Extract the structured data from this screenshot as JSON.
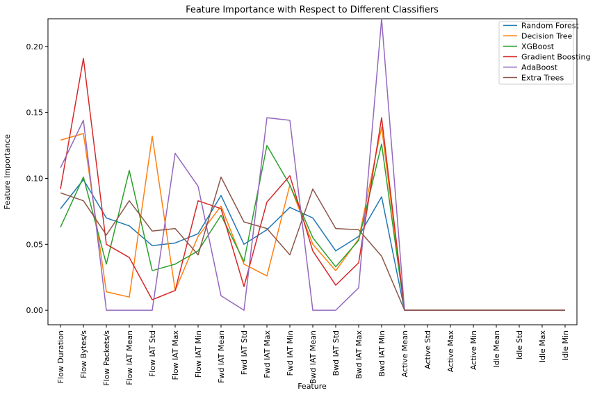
{
  "chart_data": {
    "type": "line",
    "title": "Feature Importance with Respect to Different Classifiers",
    "xlabel": "Feature",
    "ylabel": "Feature Importance",
    "ylim": [
      -0.011,
      0.221
    ],
    "yticks": [
      "0.00",
      "0.05",
      "0.10",
      "0.15",
      "0.20"
    ],
    "ytick_values": [
      0.0,
      0.05,
      0.1,
      0.15,
      0.2
    ],
    "grid": false,
    "legend_position": "top-right",
    "categories": [
      "Flow Duration",
      "Flow Bytes/s",
      "Flow Packets/s",
      "Flow IAT Mean",
      "Flow IAT Std",
      "Flow IAT Max",
      "Flow IAT Min",
      "Fwd IAT Mean",
      "Fwd IAT Std",
      "Fwd IAT Max",
      "Fwd IAT Min",
      "Bwd IAT Mean",
      "Bwd IAT Std",
      "Bwd IAT Max",
      "Bwd IAT Min",
      "Active Mean",
      "Active Std",
      "Active Max",
      "Active Min",
      "Idle Mean",
      "Idle Std",
      "Idle Max",
      "Idle Min"
    ],
    "series": [
      {
        "name": "Random Forest",
        "color": "#1f77b4",
        "values": [
          0.077,
          0.099,
          0.07,
          0.064,
          0.049,
          0.051,
          0.058,
          0.087,
          0.05,
          0.061,
          0.078,
          0.07,
          0.045,
          0.056,
          0.086,
          0.0,
          0.0,
          0.0,
          0.0,
          0.0,
          0.0,
          0.0,
          0.0
        ]
      },
      {
        "name": "Decision Tree",
        "color": "#ff7f0e",
        "values": [
          0.129,
          0.134,
          0.014,
          0.01,
          0.132,
          0.015,
          0.056,
          0.079,
          0.035,
          0.026,
          0.095,
          0.05,
          0.03,
          0.054,
          0.139,
          0.0,
          0.0,
          0.0,
          0.0,
          0.0,
          0.0,
          0.0,
          0.0
        ]
      },
      {
        "name": "XGBoost",
        "color": "#2ca02c",
        "values": [
          0.063,
          0.101,
          0.035,
          0.106,
          0.03,
          0.035,
          0.045,
          0.072,
          0.037,
          0.125,
          0.095,
          0.055,
          0.033,
          0.053,
          0.126,
          0.0,
          0.0,
          0.0,
          0.0,
          0.0,
          0.0,
          0.0,
          0.0
        ]
      },
      {
        "name": "Gradient Boosting",
        "color": "#d62728",
        "values": [
          0.092,
          0.191,
          0.05,
          0.04,
          0.008,
          0.015,
          0.083,
          0.077,
          0.018,
          0.082,
          0.102,
          0.045,
          0.019,
          0.036,
          0.146,
          0.0,
          0.0,
          0.0,
          0.0,
          0.0,
          0.0,
          0.0,
          0.0
        ]
      },
      {
        "name": "AdaBoost",
        "color": "#9467bd",
        "values": [
          0.108,
          0.144,
          0.0,
          0.0,
          0.0,
          0.119,
          0.094,
          0.011,
          0.0,
          0.146,
          0.144,
          0.0,
          0.0,
          0.017,
          0.221,
          0.0,
          0.0,
          0.0,
          0.0,
          0.0,
          0.0,
          0.0,
          0.0
        ]
      },
      {
        "name": "Extra Trees",
        "color": "#8c564b",
        "values": [
          0.089,
          0.083,
          0.057,
          0.083,
          0.06,
          0.062,
          0.042,
          0.101,
          0.067,
          0.062,
          0.042,
          0.092,
          0.062,
          0.061,
          0.041,
          0.0,
          0.0,
          0.0,
          0.0,
          0.0,
          0.0,
          0.0,
          0.0
        ]
      }
    ]
  }
}
